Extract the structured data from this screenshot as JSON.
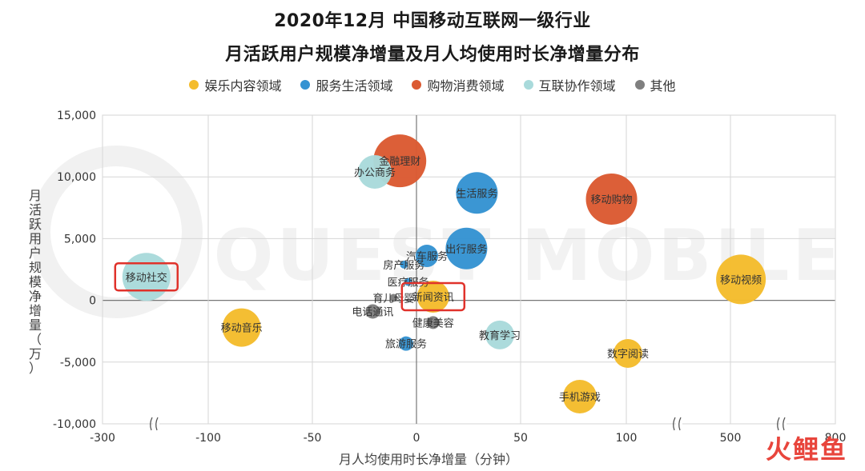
{
  "chart_data": {
    "type": "bubble",
    "title": "2020年12月 中国移动互联网一级行业",
    "subtitle": "月活跃用户规模净增量及月人均使用时长净增量分布",
    "xlabel": "月人均使用时长净增量（分钟）",
    "ylabel": "月活跃用户规模净增量（万）",
    "y_ticks": [
      "15,000",
      "10,000",
      "5,000",
      "0",
      "-5,000",
      "-10,000"
    ],
    "y_tick_values": [
      15000,
      10000,
      5000,
      0,
      -5000,
      -10000
    ],
    "x_ticks": [
      "-300",
      "-100",
      "-50",
      "0",
      "50",
      "100",
      "500",
      "800"
    ],
    "x_tick_values": [
      -300,
      -100,
      -50,
      0,
      50,
      100,
      500,
      800
    ],
    "ylim": [
      -10000,
      15000
    ],
    "grid": true,
    "legend_position": "top",
    "watermark": "QUEST MOBILE",
    "categories": [
      {
        "id": "ent",
        "name": "娱乐内容领域",
        "color": "#F4BC2C"
      },
      {
        "id": "svc",
        "name": "服务生活领域",
        "color": "#3593D2"
      },
      {
        "id": "shop",
        "name": "购物消费领域",
        "color": "#DB5A32"
      },
      {
        "id": "collab",
        "name": "互联协作领域",
        "color": "#A9DADB"
      },
      {
        "id": "other",
        "name": "其他",
        "color": "#7F7F7F"
      }
    ],
    "points": [
      {
        "label": "金融理财",
        "category": "shop",
        "x": -8,
        "y": 11300,
        "size": 33
      },
      {
        "label": "办公商务",
        "category": "collab",
        "x": -20,
        "y": 10400,
        "size": 21
      },
      {
        "label": "生活服务",
        "category": "svc",
        "x": 29,
        "y": 8700,
        "size": 26
      },
      {
        "label": "移动购物",
        "category": "shop",
        "x": 93,
        "y": 8200,
        "size": 32
      },
      {
        "label": "汽车服务",
        "category": "svc",
        "x": 5,
        "y": 3600,
        "size": 14
      },
      {
        "label": "出行服务",
        "category": "svc",
        "x": 24,
        "y": 4200,
        "size": 26
      },
      {
        "label": "房产服务",
        "category": "svc",
        "x": -6,
        "y": 2900,
        "size": 5
      },
      {
        "label": "移动社交",
        "category": "collab",
        "x": -217,
        "y": 1900,
        "size": 30
      },
      {
        "label": "医疗服务",
        "category": "svc",
        "x": -4,
        "y": 1500,
        "size": 5
      },
      {
        "label": "移动视频",
        "category": "ent",
        "x": 530,
        "y": 1700,
        "size": 31
      },
      {
        "label": "新闻资讯",
        "category": "ent",
        "x": 8,
        "y": 300,
        "size": 20
      },
      {
        "label": "育儿母婴",
        "category": "other",
        "x": -11,
        "y": 200,
        "size": 5
      },
      {
        "label": "电话通讯",
        "category": "other",
        "x": -21,
        "y": -900,
        "size": 9
      },
      {
        "label": "健康美容",
        "category": "other",
        "x": 8,
        "y": -1800,
        "size": 8
      },
      {
        "label": "移动音乐",
        "category": "ent",
        "x": -84,
        "y": -2200,
        "size": 24
      },
      {
        "label": "教育学习",
        "category": "collab",
        "x": 40,
        "y": -2800,
        "size": 18
      },
      {
        "label": "旅游服务",
        "category": "svc",
        "x": -5,
        "y": -3500,
        "size": 9
      },
      {
        "label": "数字阅读",
        "category": "ent",
        "x": 106,
        "y": -4300,
        "size": 18
      },
      {
        "label": "手机游戏",
        "category": "ent",
        "x": 78,
        "y": -7800,
        "size": 21
      }
    ],
    "highlighted": [
      "移动社交",
      "新闻资讯"
    ]
  },
  "brand": "火鲤鱼"
}
